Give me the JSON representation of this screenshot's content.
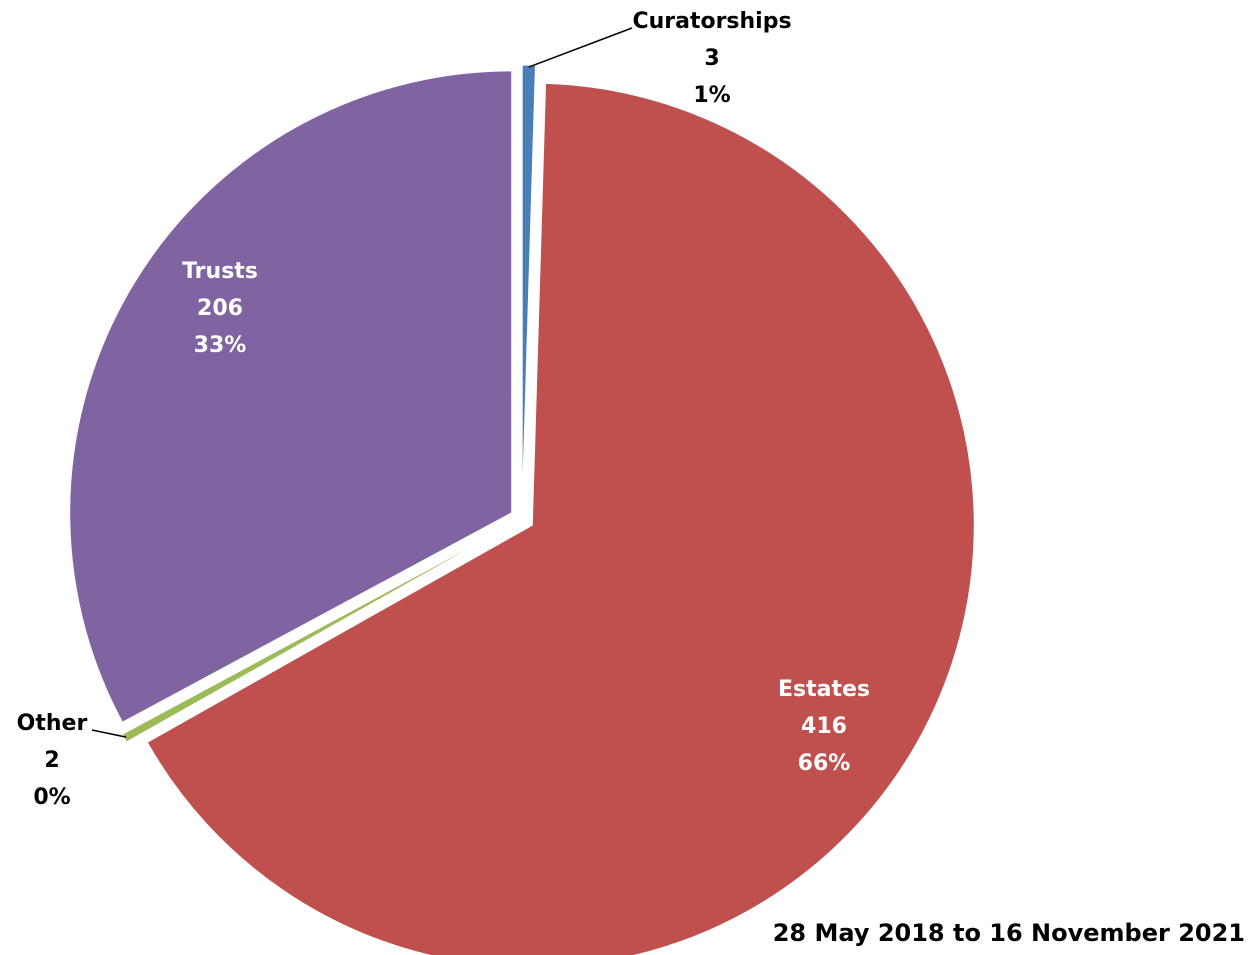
{
  "chart_data": {
    "type": "pie",
    "title": "",
    "period_label": "28 May 2018 to 16 November 2021",
    "slices": [
      {
        "name": "Curatorships",
        "value": 3,
        "percent_label": "1%",
        "color": "#4a7ebb",
        "label_side": "outside"
      },
      {
        "name": "Estates",
        "value": 416,
        "percent_label": "66%",
        "color": "#c0504d",
        "label_side": "inside"
      },
      {
        "name": "Other",
        "value": 2,
        "percent_label": "0%",
        "color": "#9bbb59",
        "label_side": "outside"
      },
      {
        "name": "Trusts",
        "value": 206,
        "percent_label": "33%",
        "color": "#8064a2",
        "label_side": "inside"
      }
    ],
    "legend": "none",
    "start_angle": "12 o'clock",
    "direction": "clockwise",
    "exploded": true
  }
}
